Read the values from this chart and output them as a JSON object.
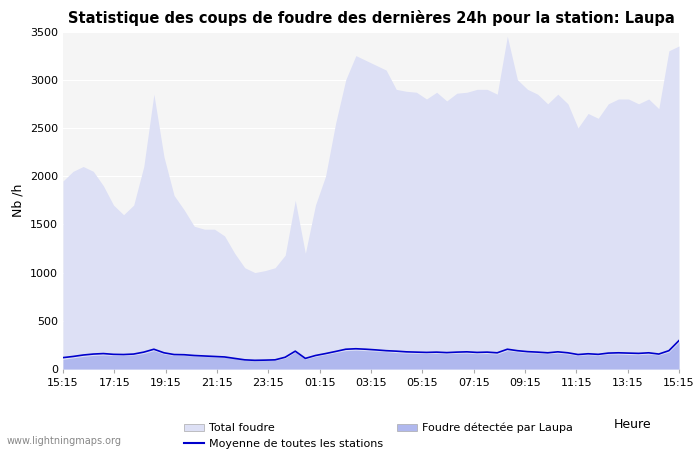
{
  "title": "Statistique des coups de foudre des dernières 24h pour la station: Laupa",
  "xlabel": "Heure",
  "ylabel": "Nb /h",
  "watermark": "www.lightningmaps.org",
  "ylim": [
    0,
    3500
  ],
  "xtick_labels": [
    "15:15",
    "17:15",
    "19:15",
    "21:15",
    "23:15",
    "01:15",
    "03:15",
    "05:15",
    "07:15",
    "09:15",
    "11:15",
    "13:15",
    "15:15"
  ],
  "total_foudre_color": "#dde0f5",
  "laupa_color": "#b0b8ee",
  "moyenne_color": "#0000cc",
  "background_color": "#ffffff",
  "plot_bg_color": "#f5f5f5",
  "total_foudre": [
    1950,
    2050,
    2100,
    2050,
    1900,
    1700,
    1600,
    1700,
    2100,
    2850,
    2200,
    1800,
    1650,
    1480,
    1450,
    1450,
    1380,
    1200,
    1050,
    1000,
    1020,
    1050,
    1180,
    1750,
    1200,
    1700,
    2000,
    2550,
    3000,
    3250,
    3200,
    3150,
    3100,
    2900,
    2880,
    2870,
    2800,
    2870,
    2780,
    2860,
    2870,
    2900,
    2900,
    2850,
    3450,
    3000,
    2900,
    2850,
    2750,
    2850,
    2750,
    2500,
    2650,
    2600,
    2750,
    2800,
    2800,
    2750,
    2800,
    2700,
    3300,
    3350
  ],
  "laupa_foudre": [
    100,
    115,
    130,
    140,
    145,
    140,
    140,
    145,
    160,
    190,
    155,
    140,
    140,
    135,
    130,
    125,
    120,
    110,
    90,
    85,
    88,
    90,
    112,
    175,
    102,
    130,
    150,
    170,
    190,
    195,
    190,
    185,
    180,
    170,
    165,
    163,
    160,
    163,
    158,
    163,
    165,
    158,
    160,
    155,
    190,
    178,
    168,
    165,
    158,
    165,
    155,
    140,
    148,
    142,
    155,
    155,
    150,
    148,
    155,
    145,
    175,
    280
  ],
  "moyenne_stations": [
    118,
    130,
    145,
    155,
    160,
    152,
    150,
    155,
    175,
    205,
    168,
    150,
    148,
    140,
    135,
    130,
    125,
    110,
    95,
    90,
    92,
    95,
    122,
    185,
    110,
    140,
    160,
    182,
    205,
    210,
    205,
    198,
    190,
    185,
    178,
    175,
    172,
    175,
    170,
    175,
    178,
    172,
    175,
    168,
    205,
    190,
    180,
    175,
    168,
    178,
    168,
    150,
    158,
    152,
    165,
    168,
    165,
    162,
    168,
    155,
    190,
    295
  ],
  "yticks": [
    0,
    500,
    1000,
    1500,
    2000,
    2500,
    3000,
    3500
  ]
}
